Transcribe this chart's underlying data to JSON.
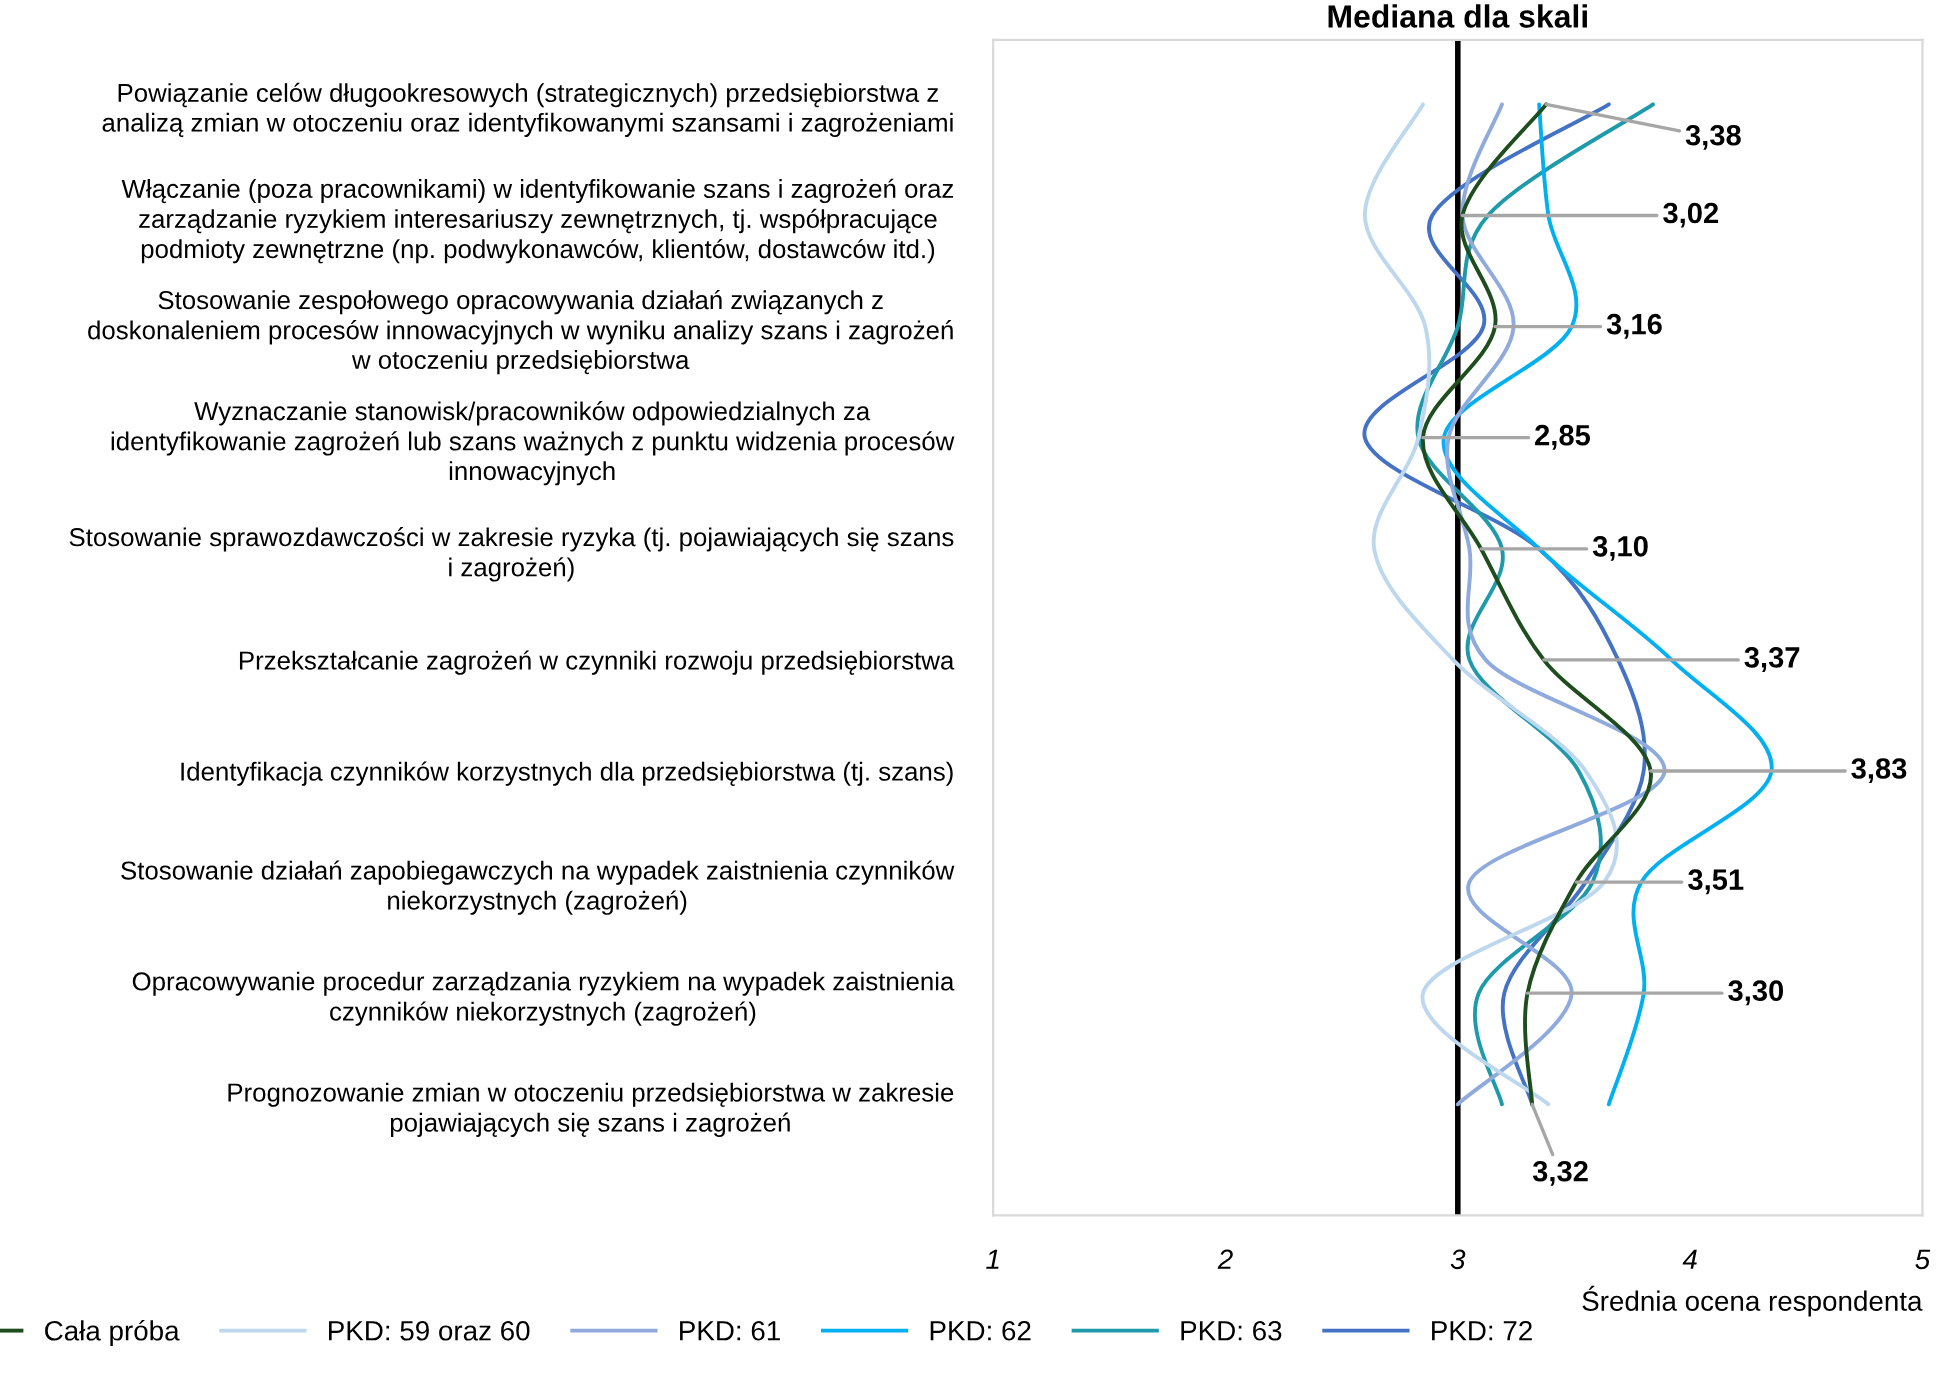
{
  "chart_data": {
    "type": "line",
    "orientation": "horizontal",
    "xlabel": "Średnia ocena respondenta",
    "categories": [
      "Powiązanie celów długookresowych (strategicznych) przedsiębiorstwa z\nanalizą zmian w otoczeniu oraz identyfikowanymi szansami i zagrożeniami",
      "Włączanie (poza pracownikami) w identyfikowanie szans i zagrożeń oraz\nzarządzanie ryzykiem interesariuszy zewnętrznych, tj. współpracujące\npodmioty zewnętrzne (np. podwykonawców, klientów, dostawców itd.)",
      "Stosowanie zespołowego opracowywania działań związanych z\ndoskonaleniem procesów innowacyjnych w wyniku analizy szans i zagrożeń\nw otoczeniu przedsiębiorstwa",
      "Wyznaczanie stanowisk/pracowników odpowiedzialnych za\nidentyfikowanie zagrożeń lub szans ważnych z punktu widzenia procesów\ninnowacyjnych",
      "Stosowanie sprawozdawczości w zakresie ryzyka (tj. pojawiających się szans\ni zagrożeń)",
      "Przekształcanie zagrożeń w czynniki rozwoju przedsiębiorstwa",
      "Identyfikacja czynników korzystnych dla przedsiębiorstwa (tj. szans)",
      "Stosowanie działań zapobiegawczych na wypadek zaistnienia czynników\nniekorzystnych (zagrożeń)",
      "Opracowywanie procedur zarządzania ryzykiem na wypadek zaistnienia\nczynników niekorzystnych (zagrożeń)",
      "Prognozowanie zmian w otoczeniu przedsiębiorstwa w zakresie\npojawiających się szans i zagrożeń"
    ],
    "xlim": [
      1,
      5
    ],
    "xticks": [
      1,
      2,
      3,
      4,
      5
    ],
    "grid": false,
    "legend": "bottom",
    "marker": "none",
    "line_style": "solid",
    "ref_lines": [
      {
        "axis": "x",
        "value": 3,
        "label": "Mediana dla skali",
        "color": "#000000"
      }
    ],
    "series": [
      {
        "name": "Cała próba",
        "color": "#1e4d1e",
        "values": [
          3.38,
          3.02,
          3.16,
          2.85,
          3.1,
          3.37,
          3.83,
          3.51,
          3.3,
          3.32
        ],
        "value_labels": [
          "3,38",
          "3,02",
          "3,16",
          "2,85",
          "3,10",
          "3,37",
          "3,83",
          "3,51",
          "3,30",
          "3,32"
        ]
      },
      {
        "name": "PKD: 59 oraz 60",
        "color": "#bdd7ee",
        "values": [
          2.85,
          2.6,
          2.86,
          2.83,
          2.64,
          2.98,
          3.55,
          3.63,
          2.85,
          3.39
        ]
      },
      {
        "name": "PKD: 61",
        "color": "#8faadc",
        "values": [
          3.19,
          3.02,
          3.24,
          2.96,
          3.05,
          3.12,
          3.89,
          3.05,
          3.49,
          3.0
        ]
      },
      {
        "name": "PKD: 62",
        "color": "#00b0f0",
        "values": [
          3.35,
          3.39,
          3.49,
          2.94,
          3.35,
          3.92,
          4.35,
          3.79,
          3.8,
          3.65
        ]
      },
      {
        "name": "PKD: 63",
        "color": "#1f9aab",
        "values": [
          3.84,
          3.13,
          3.0,
          2.83,
          3.19,
          3.05,
          3.52,
          3.58,
          3.09,
          3.19
        ]
      },
      {
        "name": "PKD: 72",
        "color": "#4472c4",
        "values": [
          3.65,
          2.89,
          3.11,
          2.6,
          3.35,
          3.69,
          3.8,
          3.55,
          3.2,
          3.32
        ]
      }
    ]
  }
}
